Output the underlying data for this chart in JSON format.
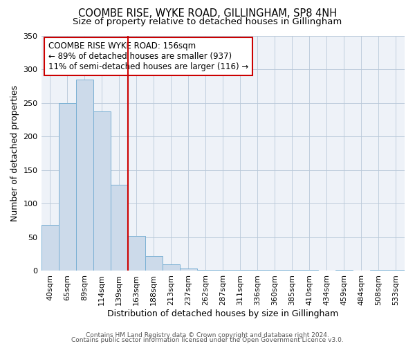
{
  "title1": "COOMBE RISE, WYKE ROAD, GILLINGHAM, SP8 4NH",
  "title2": "Size of property relative to detached houses in Gillingham",
  "xlabel": "Distribution of detached houses by size in Gillingham",
  "ylabel": "Number of detached properties",
  "annotation_line1": "COOMBE RISE WYKE ROAD: 156sqm",
  "annotation_line2": "← 89% of detached houses are smaller (937)",
  "annotation_line3": "11% of semi-detached houses are larger (116) →",
  "bar_color": "#ccdaea",
  "bar_edge_color": "#7ab0d4",
  "vline_color": "#cc0000",
  "vline_x": 4.5,
  "categories": [
    "40sqm",
    "65sqm",
    "89sqm",
    "114sqm",
    "139sqm",
    "163sqm",
    "188sqm",
    "213sqm",
    "237sqm",
    "262sqm",
    "287sqm",
    "311sqm",
    "336sqm",
    "360sqm",
    "385sqm",
    "410sqm",
    "434sqm",
    "459sqm",
    "484sqm",
    "508sqm",
    "533sqm"
  ],
  "values": [
    68,
    250,
    285,
    237,
    128,
    52,
    22,
    10,
    4,
    2,
    2,
    1,
    1,
    1,
    2,
    1,
    0,
    1,
    0,
    2,
    1
  ],
  "ylim": [
    0,
    350
  ],
  "yticks": [
    0,
    50,
    100,
    150,
    200,
    250,
    300,
    350
  ],
  "footer1": "Contains HM Land Registry data © Crown copyright and database right 2024.",
  "footer2": "Contains public sector information licensed under the Open Government Licence v3.0.",
  "bg_color": "#eef2f8",
  "title_fontsize": 10.5,
  "subtitle_fontsize": 9.5,
  "axis_label_fontsize": 9,
  "tick_fontsize": 8,
  "annotation_fontsize": 8.5,
  "footer_fontsize": 6.5
}
